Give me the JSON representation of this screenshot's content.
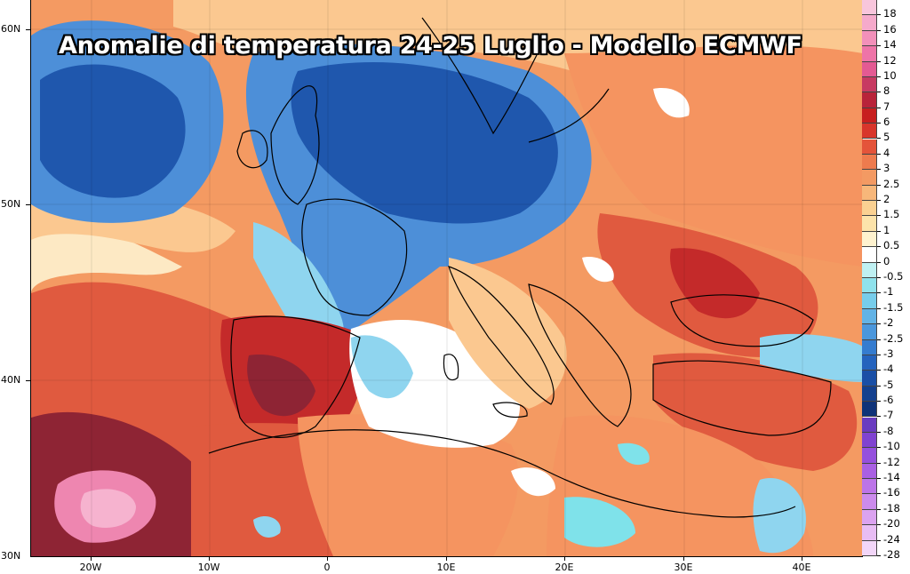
{
  "title": "Anomalie di temperatura 24-25 Luglio - Modello ECMWF",
  "lat_labels": [
    "60N",
    "50N",
    "40N",
    "30N"
  ],
  "lon_labels": [
    "20W",
    "10W",
    "0",
    "10E",
    "20E",
    "30E",
    "40E"
  ],
  "colorbar": {
    "labels": [
      "18",
      "16",
      "14",
      "12",
      "10",
      "8",
      "7",
      "6",
      "5",
      "4",
      "3",
      "2.5",
      "2",
      "1.5",
      "1",
      "0.5",
      "0",
      "-0.5",
      "-1",
      "-1.5",
      "-2",
      "-2.5",
      "-3",
      "-4",
      "-5",
      "-6",
      "-7",
      "-8",
      "-10",
      "-12",
      "-14",
      "-16",
      "-18",
      "-20",
      "-24",
      "-28"
    ],
    "colors": [
      "#f8c6dc",
      "#f5aacb",
      "#f290ba",
      "#ee74a8",
      "#e35a93",
      "#c73a62",
      "#b8233a",
      "#c71f1f",
      "#d8352b",
      "#e4543a",
      "#ee7b4e",
      "#f39a63",
      "#f7b77a",
      "#fad192",
      "#fce3aa",
      "#fef2cf",
      "#ffffff",
      "#bff0f2",
      "#8fe2ec",
      "#77cdeb",
      "#62b3e6",
      "#4b97dc",
      "#357ccf",
      "#2563bd",
      "#1a4fa6",
      "#14408e",
      "#0f3378",
      "#6a3cc0",
      "#8043d1",
      "#9550dd",
      "#a960e3",
      "#bc74e8",
      "#cc8bec",
      "#dba3f0",
      "#e8bdf4",
      "#f2d6f8"
    ]
  },
  "colors": {
    "deep_red": "#c42a2a",
    "red": "#e05a3f",
    "orange": "#f59460",
    "light_orange": "#fbc890",
    "cream": "#fde9c4",
    "white": "#ffffff",
    "light_blue": "#8fd5ef",
    "blue": "#4d8fd8",
    "dark_blue": "#1f57ad",
    "pink": "#ee86b0",
    "maroon": "#8e2434",
    "cyan": "#7fe2ea"
  }
}
